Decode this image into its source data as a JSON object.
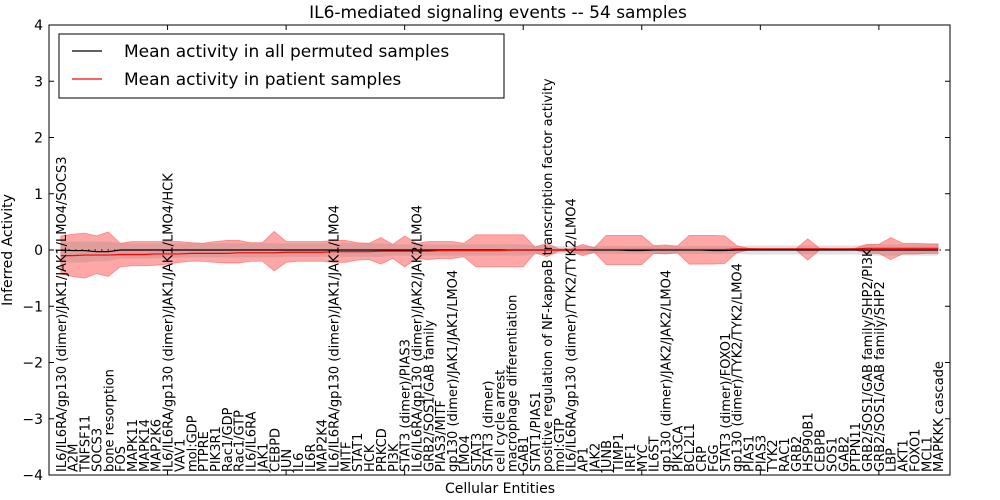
{
  "chart_data": {
    "type": "line",
    "title": "IL6-mediated signaling events -- 54 samples",
    "xlabel": "Cellular Entities",
    "ylabel": "Inferred Activity",
    "ylim": [
      -4,
      4
    ],
    "xlim": [
      0,
      76
    ],
    "yticks": [
      "-4",
      "-3",
      "-2",
      "-1",
      "0",
      "1",
      "2",
      "3",
      "4"
    ],
    "legend_position": "top-left",
    "legend": [
      "Mean activity in all permuted samples",
      "Mean activity in patient samples"
    ],
    "colors": {
      "permuted": "#000000",
      "patient": "#ff0000",
      "patient_band": "#ff4040",
      "permuted_band": "#808080"
    },
    "categories": [
      "IL6/IL6RA/gp130 (dimer)/JAK1/JAK1/LMO4/SOCS3",
      "A2M",
      "TNFSF11",
      "SOCS3",
      "bone resorption",
      "FOS",
      "MAPK11",
      "MAPK14",
      "MAP2K6",
      "IL6/IL6RA/gp130 (dimer)/JAK1/JAK1/LMO4/HCK",
      "VAV1",
      "mol:GDP",
      "PTPRE",
      "PIK3R1",
      "Rac1/GDP",
      "Rac1/GTP",
      "IL6/IL6RA",
      "JAK1",
      "CEBPD",
      "JUN",
      "IL6",
      "IL6R",
      "MAP2K4",
      "IL6/IL6RA/gp130 (dimer)/JAK1/JAK1/LMO4",
      "MITF",
      "STAT1",
      "HCK",
      "PRKCD",
      "PI3K",
      "STAT3 (dimer)/PIAS3",
      "IL6/IL6RA/gp130 (dimer)/JAK2/JAK2/LMO4",
      "GRB2/SOS1/GAB family",
      "PIAS3/MITF",
      "gp130 (dimer)/JAK1/JAK1/LMO4",
      "LMO4",
      "STAT3",
      "STAT3 (dimer)",
      "cell cycle arrest",
      "macrophage differentiation",
      "GAB1",
      "STAT1/PIAS1",
      "positive regulation of NF-kappaB transcription factor activity",
      "mol:GTP",
      "IL6/IL6RA/gp130 (dimer)/TYK2/TYK2/LMO4",
      "AP1",
      "JAK2",
      "JUNB",
      "TIMP1",
      "IRF1",
      "MYC",
      "IL6ST",
      "gp130 (dimer)/JAK2/JAK2/LMO4",
      "PIK3CA",
      "BCL2L1",
      "CRP",
      "FGG",
      "STAT3 (dimer)/FOXO1",
      "gp130 (dimer)/TYK2/TYK2/LMO4",
      "PIAS1",
      "PIAS3",
      "TYK2",
      "RAC1",
      "GRB2",
      "HSP90B1",
      "CEBPB",
      "SOS1",
      "GAB2",
      "PTPN11",
      "GRB2/SOS1/GAB family/SHP2/PI3K",
      "GRB2/SOS1/GAB family/SHP2",
      "LBP",
      "AKT1",
      "FOXO1",
      "MCL1",
      "MAPKKK cascade"
    ],
    "series": [
      {
        "name": "Mean activity in all permuted samples",
        "values": [
          0,
          -0.01,
          -0.01,
          -0.03,
          -0.03,
          0,
          0,
          0,
          0,
          0,
          0,
          0,
          0,
          0,
          0,
          0,
          0,
          0,
          0,
          0,
          0,
          0,
          0,
          0,
          0,
          0,
          0,
          0,
          0,
          0,
          0,
          0,
          0,
          0,
          0,
          0,
          0,
          0,
          0,
          0,
          0,
          0,
          0,
          0,
          0,
          0,
          0,
          0,
          -0.01,
          -0.01,
          0,
          0,
          0,
          0,
          0,
          -0.01,
          -0.01,
          0,
          0,
          0,
          0,
          0,
          0,
          0,
          0,
          0,
          0,
          0,
          0,
          0,
          0,
          0,
          0,
          0,
          0
        ],
        "band_upper": [
          0.15,
          0.15,
          0.15,
          0.15,
          0.15,
          0.12,
          0.12,
          0.12,
          0.12,
          0.12,
          0.12,
          0.12,
          0.12,
          0.12,
          0.12,
          0.12,
          0.12,
          0.12,
          0.12,
          0.12,
          0.12,
          0.12,
          0.12,
          0.12,
          0.12,
          0.12,
          0.12,
          0.12,
          0.1,
          0.1,
          0.1,
          0.1,
          0.1,
          0.1,
          0.1,
          0.1,
          0.1,
          0.1,
          0.1,
          0.1,
          0.08,
          0.08,
          0.07,
          0.07,
          0.07,
          0.07,
          0.07,
          0.07,
          0.07,
          0.07,
          0.07,
          0.07,
          0.07,
          0.07,
          0.07,
          0.07,
          0.07,
          0.07,
          0.08,
          0.08,
          0.08,
          0.08,
          0.08,
          0.08,
          0.08,
          0.08,
          0.08,
          0.08,
          0.1,
          0.1,
          0.1,
          0.1,
          0.1,
          0.1,
          0.1
        ],
        "band_lower": [
          -0.23,
          -0.22,
          -0.22,
          -0.2,
          -0.2,
          -0.15,
          -0.15,
          -0.15,
          -0.15,
          -0.14,
          -0.14,
          -0.13,
          -0.13,
          -0.13,
          -0.13,
          -0.13,
          -0.13,
          -0.13,
          -0.13,
          -0.12,
          -0.12,
          -0.12,
          -0.12,
          -0.12,
          -0.12,
          -0.12,
          -0.12,
          -0.12,
          -0.1,
          -0.1,
          -0.1,
          -0.1,
          -0.1,
          -0.1,
          -0.1,
          -0.1,
          -0.1,
          -0.1,
          -0.1,
          -0.1,
          -0.08,
          -0.08,
          -0.07,
          -0.07,
          -0.07,
          -0.07,
          -0.07,
          -0.07,
          -0.07,
          -0.07,
          -0.07,
          -0.07,
          -0.07,
          -0.07,
          -0.07,
          -0.07,
          -0.07,
          -0.07,
          -0.08,
          -0.08,
          -0.08,
          -0.08,
          -0.08,
          -0.08,
          -0.08,
          -0.08,
          -0.08,
          -0.08,
          -0.1,
          -0.1,
          -0.1,
          -0.1,
          -0.1,
          -0.1,
          -0.1
        ]
      },
      {
        "name": "Mean activity in patient samples",
        "values": [
          -0.1,
          -0.1,
          -0.09,
          -0.09,
          -0.09,
          -0.08,
          -0.08,
          -0.08,
          -0.07,
          -0.07,
          -0.07,
          -0.06,
          -0.06,
          -0.06,
          -0.06,
          -0.05,
          -0.05,
          -0.05,
          -0.05,
          -0.04,
          -0.04,
          -0.04,
          -0.04,
          -0.03,
          -0.03,
          -0.03,
          -0.03,
          -0.02,
          -0.02,
          -0.02,
          -0.02,
          -0.02,
          -0.01,
          -0.01,
          -0.01,
          -0.01,
          -0.01,
          -0.01,
          0,
          0,
          0,
          0,
          0,
          0,
          0,
          0.01,
          0.01,
          0.01,
          0.01,
          0.01,
          0.01,
          0.01,
          0.01,
          0.01,
          0.01,
          0.01,
          0.01,
          0.02,
          0.02,
          0.02,
          0.02,
          0.02,
          0.02,
          0.02,
          0.02,
          0.02,
          0.02,
          0.02,
          0.03,
          0.03,
          0.03,
          0.03,
          0.03,
          0.03,
          0.03
        ],
        "band_upper": [
          0.25,
          0.28,
          0.3,
          0.25,
          0.32,
          0.12,
          0.15,
          0.15,
          0.15,
          0.15,
          0.15,
          0.13,
          0.12,
          0.15,
          0.17,
          0.17,
          0.13,
          0.13,
          0.33,
          0.15,
          0.15,
          0.15,
          0.15,
          0.17,
          0.17,
          0.13,
          0.12,
          0.22,
          0.1,
          0.25,
          0.12,
          0.15,
          0.15,
          0.15,
          0.12,
          0.27,
          0.27,
          0.27,
          0.27,
          0.27,
          0.05,
          0.12,
          0.02,
          0.02,
          0.1,
          0.04,
          0.26,
          0.26,
          0.26,
          0.26,
          0.08,
          0.09,
          0.07,
          0.26,
          0.26,
          0.26,
          0.25,
          0.08,
          0.03,
          0.02,
          0.02,
          0.02,
          0.02,
          0.2,
          0.03,
          0.02,
          0.02,
          0.03,
          0.1,
          0.1,
          0.22,
          0.12,
          0.12,
          0.11,
          0.11
        ],
        "band_lower": [
          -0.43,
          -0.47,
          -0.5,
          -0.42,
          -0.47,
          -0.3,
          -0.28,
          -0.28,
          -0.27,
          -0.25,
          -0.22,
          -0.2,
          -0.2,
          -0.22,
          -0.23,
          -0.23,
          -0.2,
          -0.2,
          -0.37,
          -0.22,
          -0.2,
          -0.2,
          -0.2,
          -0.22,
          -0.22,
          -0.18,
          -0.17,
          -0.25,
          -0.15,
          -0.3,
          -0.15,
          -0.17,
          -0.15,
          -0.15,
          -0.12,
          -0.3,
          -0.3,
          -0.3,
          -0.3,
          -0.3,
          -0.05,
          -0.12,
          -0.02,
          -0.02,
          -0.1,
          -0.04,
          -0.26,
          -0.26,
          -0.26,
          -0.26,
          -0.06,
          -0.07,
          -0.05,
          -0.25,
          -0.25,
          -0.25,
          -0.24,
          -0.05,
          0,
          0,
          0,
          0,
          0,
          -0.18,
          0,
          0,
          0,
          0,
          -0.06,
          -0.06,
          -0.17,
          -0.07,
          -0.07,
          -0.06,
          -0.06
        ]
      }
    ]
  }
}
